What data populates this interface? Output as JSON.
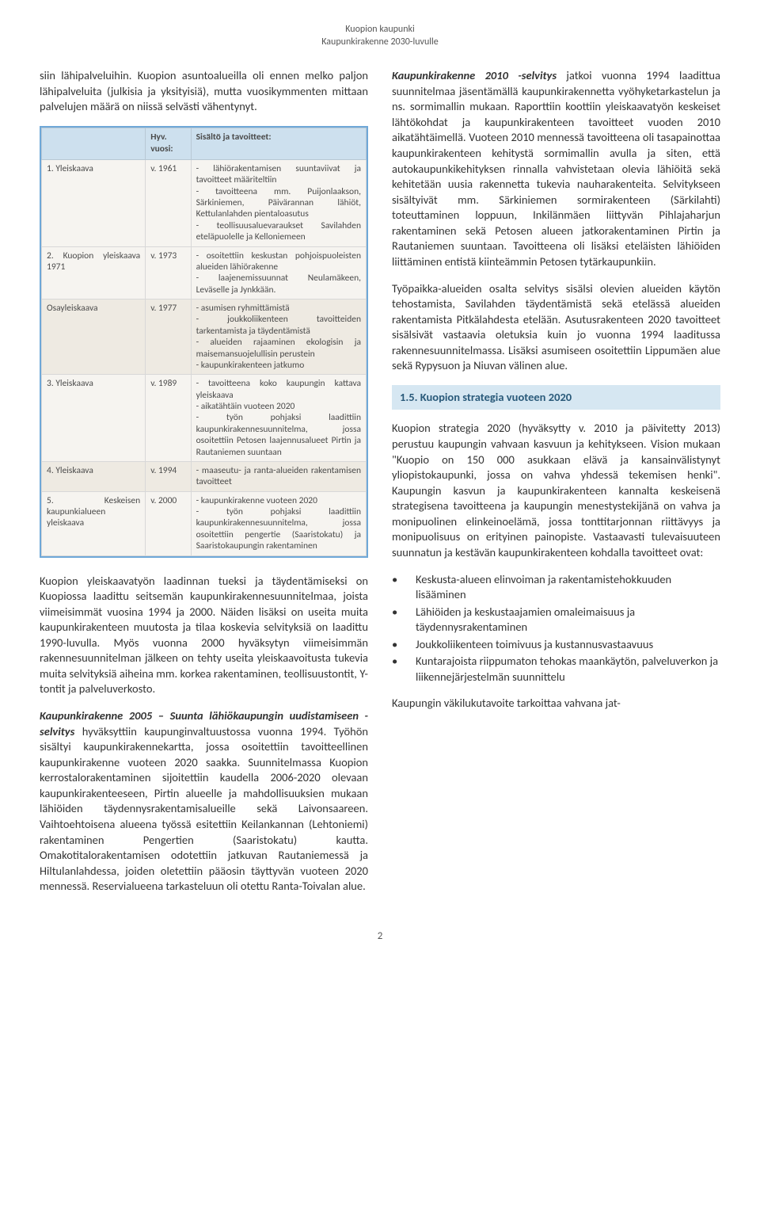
{
  "header": {
    "line1": "Kuopion kaupunki",
    "line2": "Kaupunkirakenne 2030-luvulle"
  },
  "left": {
    "intro": "siin lähipalveluihin. Kuopion asuntoalueilla oli ennen melko paljon lähipalveluita (julkisia ja yksityisiä), mutta vuosikymmenten mittaan palvelujen määrä on niissä selvästi vähentynyt.",
    "table": {
      "headers": [
        "",
        "Hyv. vuosi:",
        "Sisältö ja tavoitteet:"
      ],
      "rows": [
        {
          "num": "1.",
          "name": "Yleiskaava",
          "year": "v. 1961",
          "content": "- lähiörakentamisen suuntaviivat ja tavoitteet määriteltiin\n- tavoitteena mm. Puijonlaakson, Särkiniemen, Päivärannan lähiöt, Kettulanlahden pientaloasutus\n- teollisuusaluevaraukset Savilahden eteläpuolelle ja Kelloniemeen"
        },
        {
          "num": "2.",
          "name": "Kuopion yleiskaava 1971",
          "year": "v. 1973",
          "content": "- osoitettiin keskustan pohjoispuoleisten alueiden lähiörakenne\n- laajenemissuunnat Neulamäkeen, Leväselle ja Jynkkään."
        },
        {
          "num": "",
          "name": "Osayleiskaava",
          "year": "v. 1977",
          "shaded": true,
          "content": "- asumisen ryhmittämistä\n- joukkoliikenteen tavoitteiden tarkentamista ja täydentämistä\n- alueiden rajaaminen ekologisin ja maisemansuojelullisin perustein\n- kaupunkirakenteen jatkumo"
        },
        {
          "num": "3.",
          "name": "Yleiskaava",
          "year": "v. 1989",
          "content": "- tavoitteena koko kaupungin kattava yleiskaava\n- aikatähtäin vuoteen 2020\n- työn pohjaksi laadittiin kaupunkirakennesuunnitelma, jossa osoitettiin Petosen laajennusalueet Pirtin ja Rautaniemen suuntaan"
        },
        {
          "num": "4.",
          "name": "Yleiskaava",
          "year": "v. 1994",
          "shaded": true,
          "content": "- maaseutu- ja ranta-alueiden rakentamisen tavoitteet"
        },
        {
          "num": "5.",
          "name": "Keskeisen kaupunkialueen yleiskaava",
          "year": "v. 2000",
          "content": "- kaupunkirakenne vuoteen 2020\n- työn pohjaksi laadittiin kaupunkirakennesuunnitelma, jossa osoitettiin pengertie (Saaristokatu) ja Saaristokaupungin rakentaminen"
        }
      ]
    },
    "para2": "Kuopion yleiskaavatyön laadinnan tueksi ja täydentämiseksi on Kuopiossa laadittu seitsemän kaupunkirakennesuunnitelmaa, joista viimeisimmät vuosina 1994 ja 2000. Näiden lisäksi on useita muita kaupunkirakenteen muutosta ja tilaa koskevia selvityksiä on laadittu 1990-luvulla. Myös vuonna 2000 hyväksytyn viimeisimmän rakennesuunnitelman jälkeen on tehty useita yleiskaavoitusta tukevia muita selvityksiä aiheina mm. korkea rakentaminen, teollisuustontit, Y-tontit ja palveluverkosto.",
    "para3_bold": "Kaupunkirakenne 2005 – Suunta lähiökaupungin uudistamiseen -selvitys",
    "para3_rest": " hyväksyttiin kaupunginvaltuustossa vuonna 1994. Työhön sisältyi kaupunkirakennekartta, jossa osoitettiin tavoitteellinen kaupunkirakenne vuoteen 2020 saakka. Suunnitelmassa Kuopion kerrostalorakentaminen sijoitettiin kaudella 2006-2020 olevaan kaupunkirakenteeseen, Pirtin alueelle ja mahdollisuuksien mukaan lähiöiden täydennysrakentamisalueille sekä Laivonsaareen. Vaihtoehtoisena alueena työssä esitettiin Keilankannan (Lehtoniemi) rakentaminen Pengertien (Saaristokatu) kautta. Omakotitalorakentamisen odotettiin jatkuvan Rautaniemessä ja Hiltulanlahdessa, joiden oletettiin pääosin täyttyvän vuoteen 2020 mennessä. Reservialueena tarkasteluun oli otettu Ranta-Toivalan alue."
  },
  "right": {
    "para1_bold": "Kaupunkirakenne 2010 -selvitys",
    "para1_rest": " jatkoi vuonna 1994 laadittua suunnitelmaa jäsentämällä kaupunkirakennetta vyöhyketarkastelun ja ns. sormimallin mukaan. Raporttiin koottiin yleiskaavatyön keskeiset lähtökohdat ja kaupunkirakenteen tavoitteet vuoden 2010 aikatähtäimellä. Vuoteen 2010 mennessä tavoitteena oli tasapainottaa kaupunkirakenteen kehitystä sormimallin avulla ja siten, että autokaupunkikehityksen rinnalla vahvistetaan olevia lähiöitä sekä kehitetään uusia rakennetta tukevia nauharakenteita. Selvitykseen sisältyivät mm. Särkiniemen sormirakenteen (Särkilahti) toteuttaminen loppuun, Inkilänmäen liittyvän Pihlajaharjun rakentaminen sekä Petosen alueen jatkorakentaminen Pirtin ja Rautaniemen suuntaan. Tavoitteena oli lisäksi eteläisten lähiöiden liittäminen entistä kiinteämmin Petosen tytärkaupunkiin.",
    "para2": "Työpaikka-alueiden osalta selvitys sisälsi olevien alueiden käytön tehostamista, Savilahden täydentämistä sekä etelässä alueiden rakentamista Pitkälahdesta etelään. Asutusrakenteen 2020 tavoitteet sisälsivät vastaavia oletuksia kuin jo vuonna 1994 laaditussa rakennesuunnitelmassa. Lisäksi asumiseen osoitettiin Lippumäen alue sekä Rypysuon ja Niuvan välinen alue.",
    "heading": "1.5. Kuopion strategia vuoteen 2020",
    "para3": "Kuopion strategia 2020 (hyväksytty v. 2010 ja päivitetty 2013) perustuu kaupungin vahvaan kasvuun ja kehitykseen. Vision mukaan \"Kuopio on 150 000 asukkaan elävä ja kansainvälistynyt yliopistokaupunki, jossa on vahva yhdessä tekemisen henki\". Kaupungin kasvun ja kaupunkirakenteen kannalta keskeisenä strategisena tavoitteena ja kaupungin menestystekijänä on vahva ja monipuolinen elinkeinoelämä, jossa tonttitarjonnan riittävyys ja monipuolisuus on erityinen painopiste. Vastaavasti tulevaisuuteen suunnatun ja kestävän kaupunkirakenteen kohdalla tavoitteet ovat:",
    "bullets": [
      "Keskusta-alueen elinvoiman ja rakentamistehokkuuden lisääminen",
      "Lähiöiden ja keskustaajamien omaleimaisuus ja täydennysrakentaminen",
      "Joukkoliikenteen toimivuus ja kustannusvastaavuus",
      "Kuntarajoista riippumaton tehokas maankäytön, palveluverkon ja liikennejärjestelmän suunnittelu"
    ],
    "para4": "Kaupungin väkilukutavoite tarkoittaa vahvana jat-"
  },
  "page_number": "2"
}
